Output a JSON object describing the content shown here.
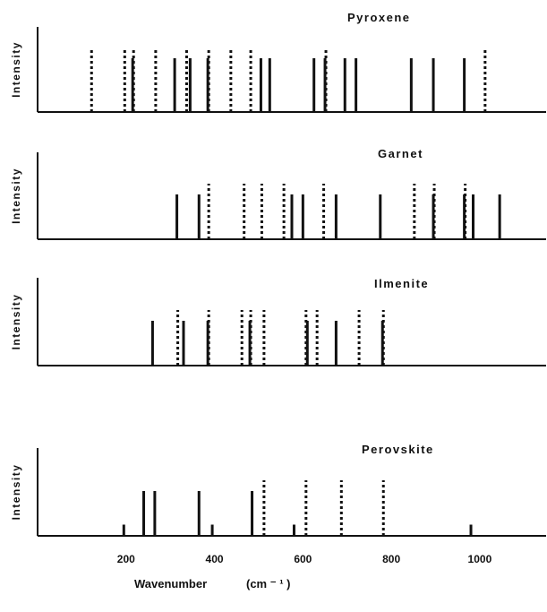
{
  "chart_data": [
    {
      "type": "bar",
      "title": "Pyroxene",
      "ylabel": "Intensity",
      "xlim": [
        0,
        1150
      ],
      "solid": [
        215,
        310,
        345,
        385,
        505,
        525,
        625,
        650,
        695,
        720,
        845,
        895,
        965
      ],
      "hatched": [
        120,
        195,
        215,
        265,
        335,
        385,
        435,
        480,
        650,
        1010
      ]
    },
    {
      "type": "bar",
      "title": "Garnet",
      "ylabel": "Intensity",
      "xlim": [
        0,
        1150
      ],
      "solid": [
        315,
        365,
        575,
        600,
        675,
        775,
        895,
        965,
        985,
        1045
      ],
      "hatched": [
        385,
        465,
        505,
        555,
        645,
        850,
        895,
        965
      ]
    },
    {
      "type": "bar",
      "title": "Ilmenite",
      "ylabel": "Intensity",
      "xlim": [
        0,
        1150
      ],
      "solid": [
        260,
        330,
        385,
        480,
        610,
        675,
        780
      ],
      "hatched": [
        315,
        385,
        460,
        480,
        510,
        605,
        630,
        725,
        780
      ]
    },
    {
      "type": "bar",
      "title": "Perovskite",
      "ylabel": "Intensity",
      "xlim": [
        0,
        1150
      ],
      "solid": [
        {
          "x": 195,
          "h": 0.25
        },
        {
          "x": 240,
          "h": 1.0
        },
        {
          "x": 265,
          "h": 1.0
        },
        {
          "x": 365,
          "h": 1.0
        },
        {
          "x": 395,
          "h": 0.25
        },
        {
          "x": 485,
          "h": 1.0
        },
        {
          "x": 580,
          "h": 0.25
        },
        {
          "x": 980,
          "h": 0.25
        }
      ],
      "hatched": [
        510,
        605,
        685,
        780
      ],
      "xticks": [
        200,
        400,
        600,
        800,
        1000
      ],
      "xlabel": "Wavenumber",
      "xlabel_unit": "(cm ⁻ ¹ )"
    }
  ]
}
